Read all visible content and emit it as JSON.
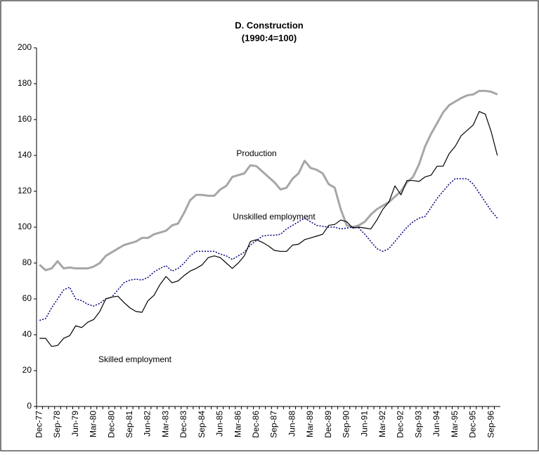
{
  "chart_data": {
    "type": "line",
    "title": "D. Construction",
    "subtitle": "(1990:4=100)",
    "categories": [
      "Dec-77",
      null,
      null,
      "Sep-78",
      null,
      null,
      "Jun-79",
      null,
      null,
      "Mar-80",
      null,
      null,
      "Dec-80",
      null,
      null,
      "Sep-81",
      null,
      null,
      "Jun-82",
      null,
      null,
      "Mar-83",
      null,
      null,
      "Dec-83",
      null,
      null,
      "Sep-84",
      null,
      null,
      "Jun-85",
      null,
      null,
      "Mar-86",
      null,
      null,
      "Dec-86",
      null,
      null,
      "Sep-87",
      null,
      null,
      "Jun-88",
      null,
      null,
      "Mar-89",
      null,
      null,
      "Dec-89",
      null,
      null,
      "Sep-90",
      null,
      null,
      "Jun-91",
      null,
      null,
      "Mar-92",
      null,
      null,
      "Dec-92",
      null,
      null,
      "Sep-93",
      null,
      null,
      "Jun-94",
      null,
      null,
      "Mar-95",
      null,
      null,
      "Dec-95",
      null,
      null,
      "Sep-96",
      null
    ],
    "series": [
      {
        "name": "Production",
        "color": "#a6a6a6",
        "dash": "solid",
        "width": 3,
        "values": [
          79,
          76,
          77,
          81,
          77,
          77.5,
          77,
          77,
          77,
          78,
          80,
          84,
          86,
          88,
          90,
          91,
          92,
          94,
          94,
          96,
          97,
          98,
          101,
          102,
          108,
          115,
          118,
          118,
          117.5,
          117.5,
          121,
          123,
          128,
          129,
          130,
          134.5,
          134,
          131,
          128,
          125,
          121,
          122,
          127,
          130,
          137,
          133,
          132,
          130,
          124,
          122,
          110,
          101,
          100,
          101,
          103,
          107,
          110,
          112,
          114,
          117,
          120,
          125,
          128,
          135,
          145,
          152,
          158,
          164,
          168,
          170,
          172,
          173.5,
          174,
          176,
          176,
          175.5,
          174
        ]
      },
      {
        "name": "Unskilled employment",
        "color": "#000080",
        "dash": "dotted",
        "width": 1.5,
        "values": [
          48,
          49,
          55,
          60,
          65,
          66.5,
          60,
          59,
          57,
          56,
          57.5,
          60,
          61,
          65,
          69,
          70.5,
          71,
          70.5,
          72,
          75,
          77,
          78.5,
          75.5,
          77,
          80,
          84,
          86.5,
          86.5,
          86.5,
          86.5,
          85,
          84,
          82,
          84,
          86,
          90,
          92.5,
          95,
          95.5,
          95.5,
          96,
          99,
          101,
          103,
          105,
          103,
          101,
          100.5,
          100,
          100,
          99,
          99.5,
          100,
          99.5,
          96,
          92,
          88,
          86.5,
          88,
          92,
          96,
          100,
          103,
          105,
          106,
          111,
          116,
          120,
          124,
          127,
          127,
          127,
          124,
          119,
          114,
          109,
          105
        ]
      },
      {
        "name": "Skilled employment",
        "color": "#000000",
        "dash": "solid",
        "width": 1.2,
        "values": [
          38,
          38,
          33.5,
          34,
          38,
          39.5,
          45,
          44,
          47,
          48.5,
          53,
          60,
          61,
          61.5,
          58,
          55,
          53,
          52.5,
          59,
          62,
          68,
          72.5,
          69,
          70,
          73,
          75.5,
          77,
          79,
          83,
          84,
          83,
          80,
          77,
          80,
          84,
          92,
          93,
          91.5,
          89.5,
          87,
          86.5,
          86.5,
          90,
          90.5,
          93,
          94,
          95,
          96,
          101,
          101.5,
          104,
          103,
          99.5,
          100,
          99.5,
          99,
          104,
          110,
          114,
          123,
          118,
          126,
          126,
          125.5,
          128,
          129,
          134,
          134,
          141,
          145,
          151,
          154,
          157,
          164.5,
          163,
          153,
          140
        ]
      }
    ],
    "ylim": [
      0,
      200
    ],
    "yticks": [
      0,
      20,
      40,
      60,
      80,
      100,
      120,
      140,
      160,
      180,
      200
    ],
    "grid": false
  }
}
